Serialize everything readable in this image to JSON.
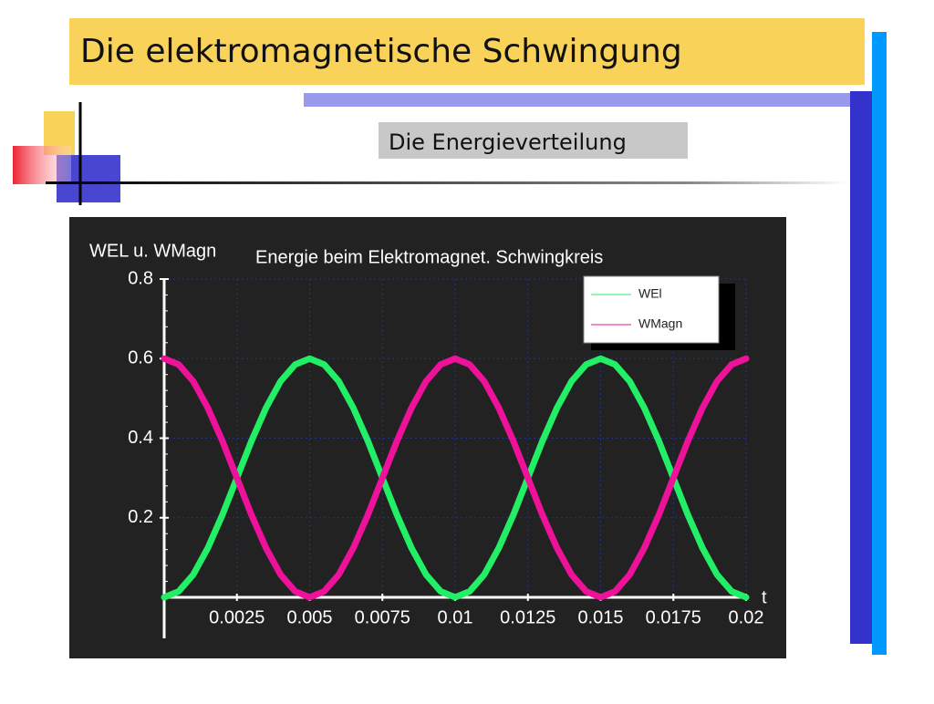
{
  "slide": {
    "title": "Die elektromagnetische Schwingung",
    "subtitle": "Die Energieverteilung"
  },
  "chart_data": {
    "type": "line",
    "title": "Energie beim Elektromagnet. Schwingkreis",
    "x_label": "t",
    "y_label": "WEL u. WMagn",
    "x": [
      0,
      0.0005,
      0.001,
      0.0015,
      0.002,
      0.0025,
      0.003,
      0.0035,
      0.004,
      0.0045,
      0.005,
      0.0055,
      0.006,
      0.0065,
      0.007,
      0.0075,
      0.008,
      0.0085,
      0.009,
      0.0095,
      0.01,
      0.0105,
      0.011,
      0.0115,
      0.012,
      0.0125,
      0.013,
      0.0135,
      0.014,
      0.0145,
      0.015,
      0.0155,
      0.016,
      0.0165,
      0.017,
      0.0175,
      0.018,
      0.0185,
      0.019,
      0.0195,
      0.02
    ],
    "series": [
      {
        "name": "WEl",
        "color": "#22ee66",
        "values": [
          0,
          0.015,
          0.057,
          0.124,
          0.207,
          0.3,
          0.393,
          0.476,
          0.543,
          0.585,
          0.6,
          0.585,
          0.543,
          0.476,
          0.393,
          0.3,
          0.207,
          0.124,
          0.057,
          0.015,
          0,
          0.015,
          0.057,
          0.124,
          0.207,
          0.3,
          0.393,
          0.476,
          0.543,
          0.585,
          0.6,
          0.585,
          0.543,
          0.476,
          0.393,
          0.3,
          0.207,
          0.124,
          0.057,
          0.015,
          0
        ]
      },
      {
        "name": "WMagn",
        "color": "#ee1199",
        "values": [
          0.6,
          0.585,
          0.543,
          0.476,
          0.393,
          0.3,
          0.207,
          0.124,
          0.057,
          0.015,
          0,
          0.015,
          0.057,
          0.124,
          0.207,
          0.3,
          0.393,
          0.476,
          0.543,
          0.585,
          0.6,
          0.585,
          0.543,
          0.476,
          0.393,
          0.3,
          0.207,
          0.124,
          0.057,
          0.015,
          0,
          0.015,
          0.057,
          0.124,
          0.207,
          0.3,
          0.393,
          0.476,
          0.543,
          0.585,
          0.6
        ]
      }
    ],
    "xlim": [
      0,
      0.02
    ],
    "xticks": [
      0.0025,
      0.005,
      0.0075,
      0.01,
      0.0125,
      0.015,
      0.0175,
      0.02
    ],
    "ylim": [
      0,
      0.8
    ],
    "yticks": [
      0.2,
      0.4,
      0.6,
      0.8
    ],
    "grid": true,
    "legend": "upper right"
  }
}
